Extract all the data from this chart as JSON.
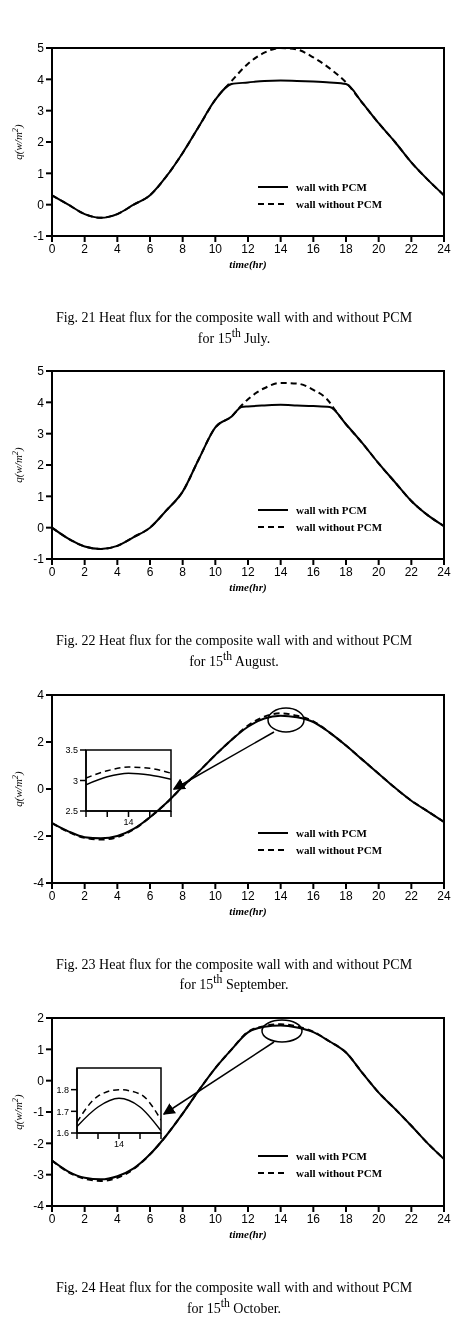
{
  "chart_data": [
    {
      "type": "line",
      "title": "Fig. 21 Heat flux for the composite wall with and without PCM for 15$^{th}$ July.",
      "xlabel": "time(hr)",
      "ylabel": "q(w/m$^{2}$)",
      "xlim": [
        0,
        24
      ],
      "ylim": [
        -1,
        5
      ],
      "xticks": [
        0,
        2,
        4,
        6,
        8,
        10,
        12,
        14,
        16,
        18,
        20,
        22,
        24
      ],
      "yticks": [
        -1,
        0,
        1,
        2,
        3,
        4,
        5
      ],
      "legend": "bottom right",
      "series": [
        {
          "name": "wall with PCM",
          "color": "#000000",
          "line_style": "solid",
          "x": [
            0,
            1,
            2,
            3,
            4,
            5,
            6,
            7,
            8,
            9,
            10,
            11,
            12,
            13,
            14,
            15,
            16,
            17,
            18,
            19,
            20,
            21,
            22,
            23,
            24
          ],
          "values": [
            0.3,
            0.0,
            -0.3,
            -0.42,
            -0.3,
            0.0,
            0.3,
            0.9,
            1.65,
            2.5,
            3.35,
            3.85,
            3.9,
            3.95,
            3.96,
            3.95,
            3.93,
            3.9,
            3.85,
            3.25,
            2.6,
            2.0,
            1.35,
            0.8,
            0.3
          ]
        },
        {
          "name": "wall without PCM",
          "color": "#000000",
          "line_style": "dashed",
          "x": [
            0,
            1,
            2,
            3,
            4,
            5,
            6,
            7,
            8,
            9,
            10,
            11,
            12,
            13,
            14,
            15,
            16,
            17,
            18,
            19,
            20,
            21,
            22,
            23,
            24
          ],
          "values": [
            0.3,
            0.0,
            -0.3,
            -0.42,
            -0.3,
            0.0,
            0.3,
            0.9,
            1.65,
            2.5,
            3.35,
            3.95,
            4.5,
            4.85,
            5.0,
            4.95,
            4.7,
            4.35,
            3.9,
            3.25,
            2.6,
            2.0,
            1.35,
            0.8,
            0.3
          ]
        }
      ]
    },
    {
      "type": "line",
      "title": "Fig. 22 Heat flux for the composite wall with and without PCM for 15$^{th}$ August.",
      "xlabel": "time(hr)",
      "ylabel": "q(w/m$^{2}$)",
      "xlim": [
        0,
        24
      ],
      "ylim": [
        -1,
        5
      ],
      "xticks": [
        0,
        2,
        4,
        6,
        8,
        10,
        12,
        14,
        16,
        18,
        20,
        22,
        24
      ],
      "yticks": [
        -1,
        0,
        1,
        2,
        3,
        4,
        5
      ],
      "legend": "bottom right",
      "series": [
        {
          "name": "wall with PCM",
          "color": "#000000",
          "line_style": "solid",
          "x": [
            0,
            1,
            2,
            3,
            4,
            5,
            6,
            7,
            8,
            9,
            10,
            11,
            11.6,
            12,
            13,
            14,
            15,
            16,
            17,
            18,
            19,
            20,
            21,
            22,
            23,
            24
          ],
          "values": [
            0.0,
            -0.35,
            -0.6,
            -0.68,
            -0.58,
            -0.3,
            0.0,
            0.55,
            1.15,
            2.2,
            3.2,
            3.55,
            3.85,
            3.87,
            3.9,
            3.92,
            3.9,
            3.88,
            3.85,
            3.3,
            2.7,
            2.05,
            1.45,
            0.85,
            0.4,
            0.05
          ]
        },
        {
          "name": "wall without PCM",
          "color": "#000000",
          "line_style": "dashed",
          "x": [
            0,
            1,
            2,
            3,
            4,
            5,
            6,
            7,
            8,
            9,
            10,
            11,
            11.6,
            12,
            13,
            14,
            15,
            16,
            17,
            17.2,
            18,
            19,
            20,
            21,
            22,
            23,
            24
          ],
          "values": [
            0.0,
            -0.35,
            -0.6,
            -0.68,
            -0.58,
            -0.3,
            0.0,
            0.55,
            1.15,
            2.2,
            3.2,
            3.55,
            3.9,
            4.1,
            4.45,
            4.62,
            4.6,
            4.4,
            4.0,
            3.85,
            3.3,
            2.7,
            2.05,
            1.45,
            0.85,
            0.4,
            0.05
          ]
        }
      ]
    },
    {
      "type": "line",
      "title": "Fig. 23 Heat flux for the composite wall with and without PCM for 15$^{th}$ September.",
      "xlabel": "time(hr)",
      "ylabel": "q(w/m$^{2}$)",
      "xlim": [
        0,
        24
      ],
      "ylim": [
        -4,
        4
      ],
      "xticks": [
        0,
        2,
        4,
        6,
        8,
        10,
        12,
        14,
        16,
        18,
        20,
        22,
        24
      ],
      "yticks": [
        -4,
        -2,
        0,
        2,
        4
      ],
      "legend": "bottom right",
      "series": [
        {
          "name": "wall with PCM",
          "color": "#000000",
          "line_style": "solid",
          "x": [
            0,
            1,
            2,
            3,
            4,
            5,
            6,
            7,
            8,
            9,
            10,
            11,
            12,
            13,
            14,
            15,
            16,
            17,
            18,
            19,
            20,
            21,
            22,
            23,
            24
          ],
          "values": [
            -1.45,
            -1.8,
            -2.05,
            -2.1,
            -2.0,
            -1.7,
            -1.2,
            -0.6,
            0.1,
            0.75,
            1.45,
            2.1,
            2.65,
            3.0,
            3.12,
            3.05,
            2.85,
            2.4,
            1.85,
            1.25,
            0.65,
            0.05,
            -0.5,
            -0.95,
            -1.4
          ]
        },
        {
          "name": "wall without PCM",
          "color": "#000000",
          "line_style": "dashed",
          "x": [
            0,
            1,
            2,
            3,
            4,
            5,
            6,
            7,
            8,
            9,
            10,
            11,
            12,
            13,
            14,
            15,
            16,
            17,
            18,
            19,
            20,
            21,
            22,
            23,
            24
          ],
          "values": [
            -1.45,
            -1.82,
            -2.08,
            -2.15,
            -2.05,
            -1.72,
            -1.2,
            -0.6,
            0.1,
            0.75,
            1.45,
            2.1,
            2.7,
            3.08,
            3.22,
            3.12,
            2.88,
            2.4,
            1.85,
            1.25,
            0.65,
            0.05,
            -0.5,
            -0.95,
            -1.4
          ]
        }
      ]
    },
    {
      "type": "line",
      "categories": [
        null,
        null,
        "14",
        null,
        null
      ],
      "ylim": [
        2.5,
        3.5
      ],
      "yticks": [
        2.5,
        3,
        3.5
      ],
      "series": [
        {
          "color": "#000000",
          "line_style": "solid",
          "values": [
            2.93,
            3.06,
            3.12,
            3.09,
            3.02
          ]
        },
        {
          "color": "#000000",
          "line_style": "dashed",
          "values": [
            3.04,
            3.16,
            3.22,
            3.2,
            3.12
          ]
        }
      ]
    },
    {
      "type": "line",
      "title": "Fig. 24 Heat flux for the composite wall with and without PCM for 15$^{th}$ October.",
      "xlabel": "time(hr)",
      "ylabel": "q(w/m$^{2}$)",
      "xlim": [
        0,
        24
      ],
      "ylim": [
        -4,
        2
      ],
      "xticks": [
        0,
        2,
        4,
        6,
        8,
        10,
        12,
        14,
        16,
        18,
        20,
        22,
        24
      ],
      "yticks": [
        -4,
        -3,
        -2,
        -1,
        0,
        1,
        2
      ],
      "legend": "bottom right",
      "series": [
        {
          "name": "wall with PCM",
          "color": "#000000",
          "line_style": "solid",
          "x": [
            0,
            1,
            2,
            3,
            4,
            5,
            6,
            7,
            8,
            9,
            10,
            11,
            12,
            13,
            14,
            15,
            16,
            17,
            18,
            19,
            20,
            21,
            22,
            23,
            24
          ],
          "values": [
            -2.55,
            -2.9,
            -3.1,
            -3.15,
            -3.05,
            -2.8,
            -2.35,
            -1.75,
            -1.05,
            -0.3,
            0.4,
            1.0,
            1.54,
            1.72,
            1.76,
            1.7,
            1.55,
            1.25,
            0.9,
            0.25,
            -0.38,
            -0.9,
            -1.44,
            -2.0,
            -2.5
          ]
        },
        {
          "name": "wall without PCM",
          "color": "#000000",
          "line_style": "dashed",
          "x": [
            0,
            1,
            2,
            3,
            4,
            5,
            6,
            7,
            8,
            9,
            10,
            11,
            12,
            13,
            14,
            15,
            16,
            17,
            18,
            19,
            20,
            21,
            22,
            23,
            24
          ],
          "values": [
            -2.55,
            -2.92,
            -3.13,
            -3.2,
            -3.1,
            -2.82,
            -2.35,
            -1.75,
            -1.05,
            -0.3,
            0.4,
            1.0,
            1.56,
            1.74,
            1.8,
            1.73,
            1.56,
            1.25,
            0.9,
            0.25,
            -0.38,
            -0.9,
            -1.44,
            -2.0,
            -2.5
          ]
        }
      ]
    },
    {
      "type": "line",
      "categories": [
        null,
        null,
        "14",
        null,
        null
      ],
      "ylim": [
        1.6,
        1.9
      ],
      "yticks": [
        1.6,
        1.7,
        1.8
      ],
      "series": [
        {
          "color": "#000000",
          "line_style": "solid",
          "values": [
            1.63,
            1.72,
            1.76,
            1.72,
            1.61
          ]
        },
        {
          "color": "#000000",
          "line_style": "dashed",
          "values": [
            1.65,
            1.77,
            1.8,
            1.78,
            1.66
          ]
        }
      ]
    }
  ]
}
